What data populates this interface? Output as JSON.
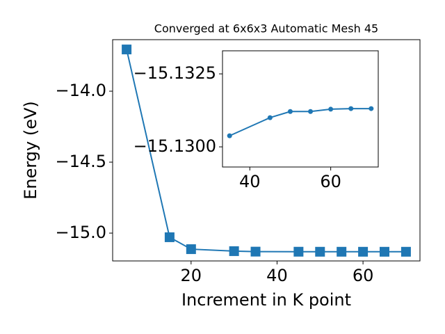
{
  "chart_data": [
    {
      "type": "line",
      "title": "Converged at 6x6x3 Automatic Mesh 45",
      "x_label": "Increment in K point",
      "y_label": "Energy (eV)",
      "x": [
        5,
        15,
        20,
        30,
        35,
        45,
        50,
        55,
        60,
        65,
        70
      ],
      "series": [
        {
          "color": "#1f77b4",
          "marker": "square",
          "values": [
            -13.706,
            -15.029,
            -15.113,
            -15.127,
            -15.1304,
            -15.131,
            -15.1312,
            -15.1312,
            -15.1313,
            -15.1313,
            -15.1313
          ]
        }
      ],
      "xlim": [
        1.75,
        73.25
      ],
      "xticks": [
        20,
        40,
        60
      ],
      "ylim": [
        -15.196,
        -13.637
      ],
      "yticks": [
        {
          "value": -14.0,
          "label": "−14.0"
        },
        {
          "value": -14.5,
          "label": "−14.5"
        },
        {
          "value": -15.0,
          "label": "−15.0"
        }
      ]
    },
    {
      "type": "line",
      "x": [
        35,
        45,
        50,
        55,
        60,
        65,
        70
      ],
      "series": [
        {
          "color": "#1f77b4",
          "marker": "circle",
          "values": [
            -15.13038,
            -15.131,
            -15.13121,
            -15.13121,
            -15.13129,
            -15.13131,
            -15.13131
          ]
        }
      ],
      "xlim": [
        33.25,
        71.75
      ],
      "xticks": [
        40,
        60
      ],
      "ylim": [
        -15.12931,
        -15.13329
      ],
      "yticks": [
        {
          "value": -15.1325,
          "label": "−15.1325"
        },
        {
          "value": -15.13,
          "label": "−15.1300"
        }
      ]
    }
  ]
}
